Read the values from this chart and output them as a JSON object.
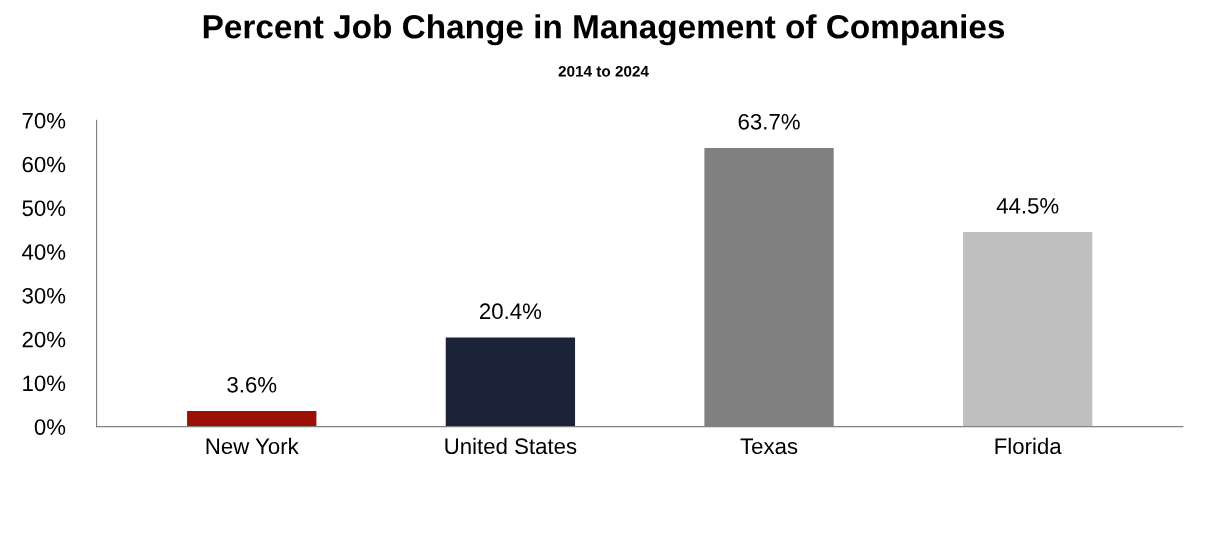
{
  "chart_data": {
    "type": "bar",
    "title": "Percent Job Change in Management of Companies",
    "subtitle": "2014 to 2024",
    "categories": [
      "New York",
      "United States",
      "Texas",
      "Florida"
    ],
    "values": [
      3.6,
      20.4,
      63.7,
      44.5
    ],
    "colors": [
      "#9b1106",
      "#1b2338",
      "#808080",
      "#bfbfbf"
    ],
    "value_labels": [
      "3.6%",
      "20.4%",
      "63.7%",
      "44.5%"
    ],
    "ylim": [
      0,
      70
    ],
    "yticks": [
      {
        "value": 0,
        "label": "0%"
      },
      {
        "value": 10,
        "label": "10%"
      },
      {
        "value": 20,
        "label": "20%"
      },
      {
        "value": 30,
        "label": "30%"
      },
      {
        "value": 40,
        "label": "40%"
      },
      {
        "value": 50,
        "label": "50%"
      },
      {
        "value": 60,
        "label": "60%"
      },
      {
        "value": 70,
        "label": "70%"
      }
    ],
    "grid": false,
    "legend": false
  }
}
